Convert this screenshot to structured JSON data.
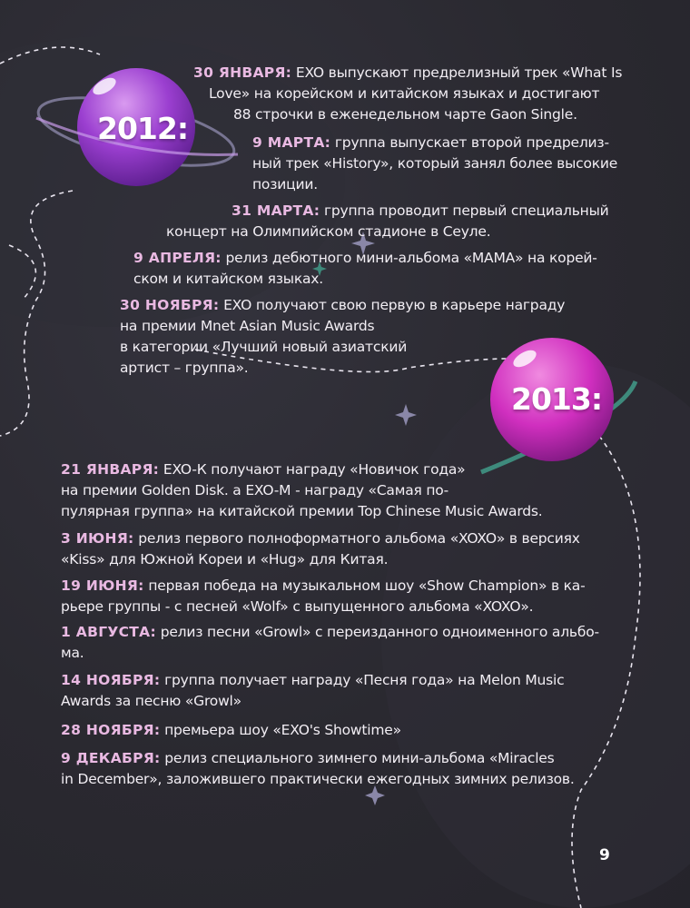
{
  "colors": {
    "background": "#2a2930",
    "date": "#e9b9e2",
    "text": "#f2eef4",
    "planet_2012": "#9b3fd0",
    "planet_2013": "#d02fbf"
  },
  "year2012": {
    "label": "2012:",
    "entries": [
      {
        "date": "30 ЯНВАРЯ:",
        "lines": [
          " EXO выпускают предрелизный трек «What Is",
          "Love» на корейском и китайском языках и достигают",
          "88 строчки в еженедельном чарте Gaon Single."
        ]
      },
      {
        "date": "9 МАРТА:",
        "lines": [
          " группа выпускает второй предрелиз-",
          "ный трек «History», который занял более высокие",
          "позиции."
        ]
      },
      {
        "date": "31 МАРТА:",
        "lines": [
          " группа проводит первый специальный",
          "концерт на Олимпийском стадионе в Сеуле."
        ]
      },
      {
        "date": "9 АПРЕЛЯ:",
        "lines": [
          " релиз дебютного мини-альбома «МАМА» на корей-",
          "ском и китайском языках."
        ]
      },
      {
        "date": "30 НОЯБРЯ:",
        "lines": [
          " EXO получают свою первую в карьере награду",
          "на премии Mnet Asian Music Awards",
          "в категории «Лучший новый азиатский",
          "артист – группа»."
        ]
      }
    ]
  },
  "year2013": {
    "label": "2013:",
    "entries": [
      {
        "date": "21 ЯНВАРЯ:",
        "lines": [
          " EXO-К получают награду «Новичок года»",
          "на премии Golden Disk. а EXO-M - награду «Самая по-",
          "пулярная группа» на китайской премии Top Chinese Music Awards."
        ]
      },
      {
        "date": "3 ИЮНЯ:",
        "lines": [
          " релиз первого полноформатного альбома «XOXO» в версиях",
          "«Kiss» для Южной Кореи и «Hug» для Китая."
        ]
      },
      {
        "date": "19 ИЮНЯ:",
        "lines": [
          " первая победа на музыкальном шоу «Show Champion» в ка-",
          "рьере группы - с песней «Wolf» с выпущенного альбома «XOXO»."
        ]
      },
      {
        "date": "1 АВГУСТА:",
        "lines": [
          " релиз песни «Growl» с переизданного одноименного альбо-",
          "ма."
        ]
      },
      {
        "date": "14 НОЯБРЯ:",
        "lines": [
          " группа получает награду «Песня года» на Melon Music",
          "Awards за песню «Growl»"
        ]
      },
      {
        "date": "28 НОЯБРЯ:",
        "lines": [
          " премьера шоу «EXO's Showtime»"
        ]
      },
      {
        "date": "9 ДЕКАБРЯ:",
        "lines": [
          " релиз специального зимнего мини-альбома «Miracles",
          "in December», заложившего практически ежегодных зимних релизов."
        ]
      }
    ]
  },
  "page_number": "9"
}
